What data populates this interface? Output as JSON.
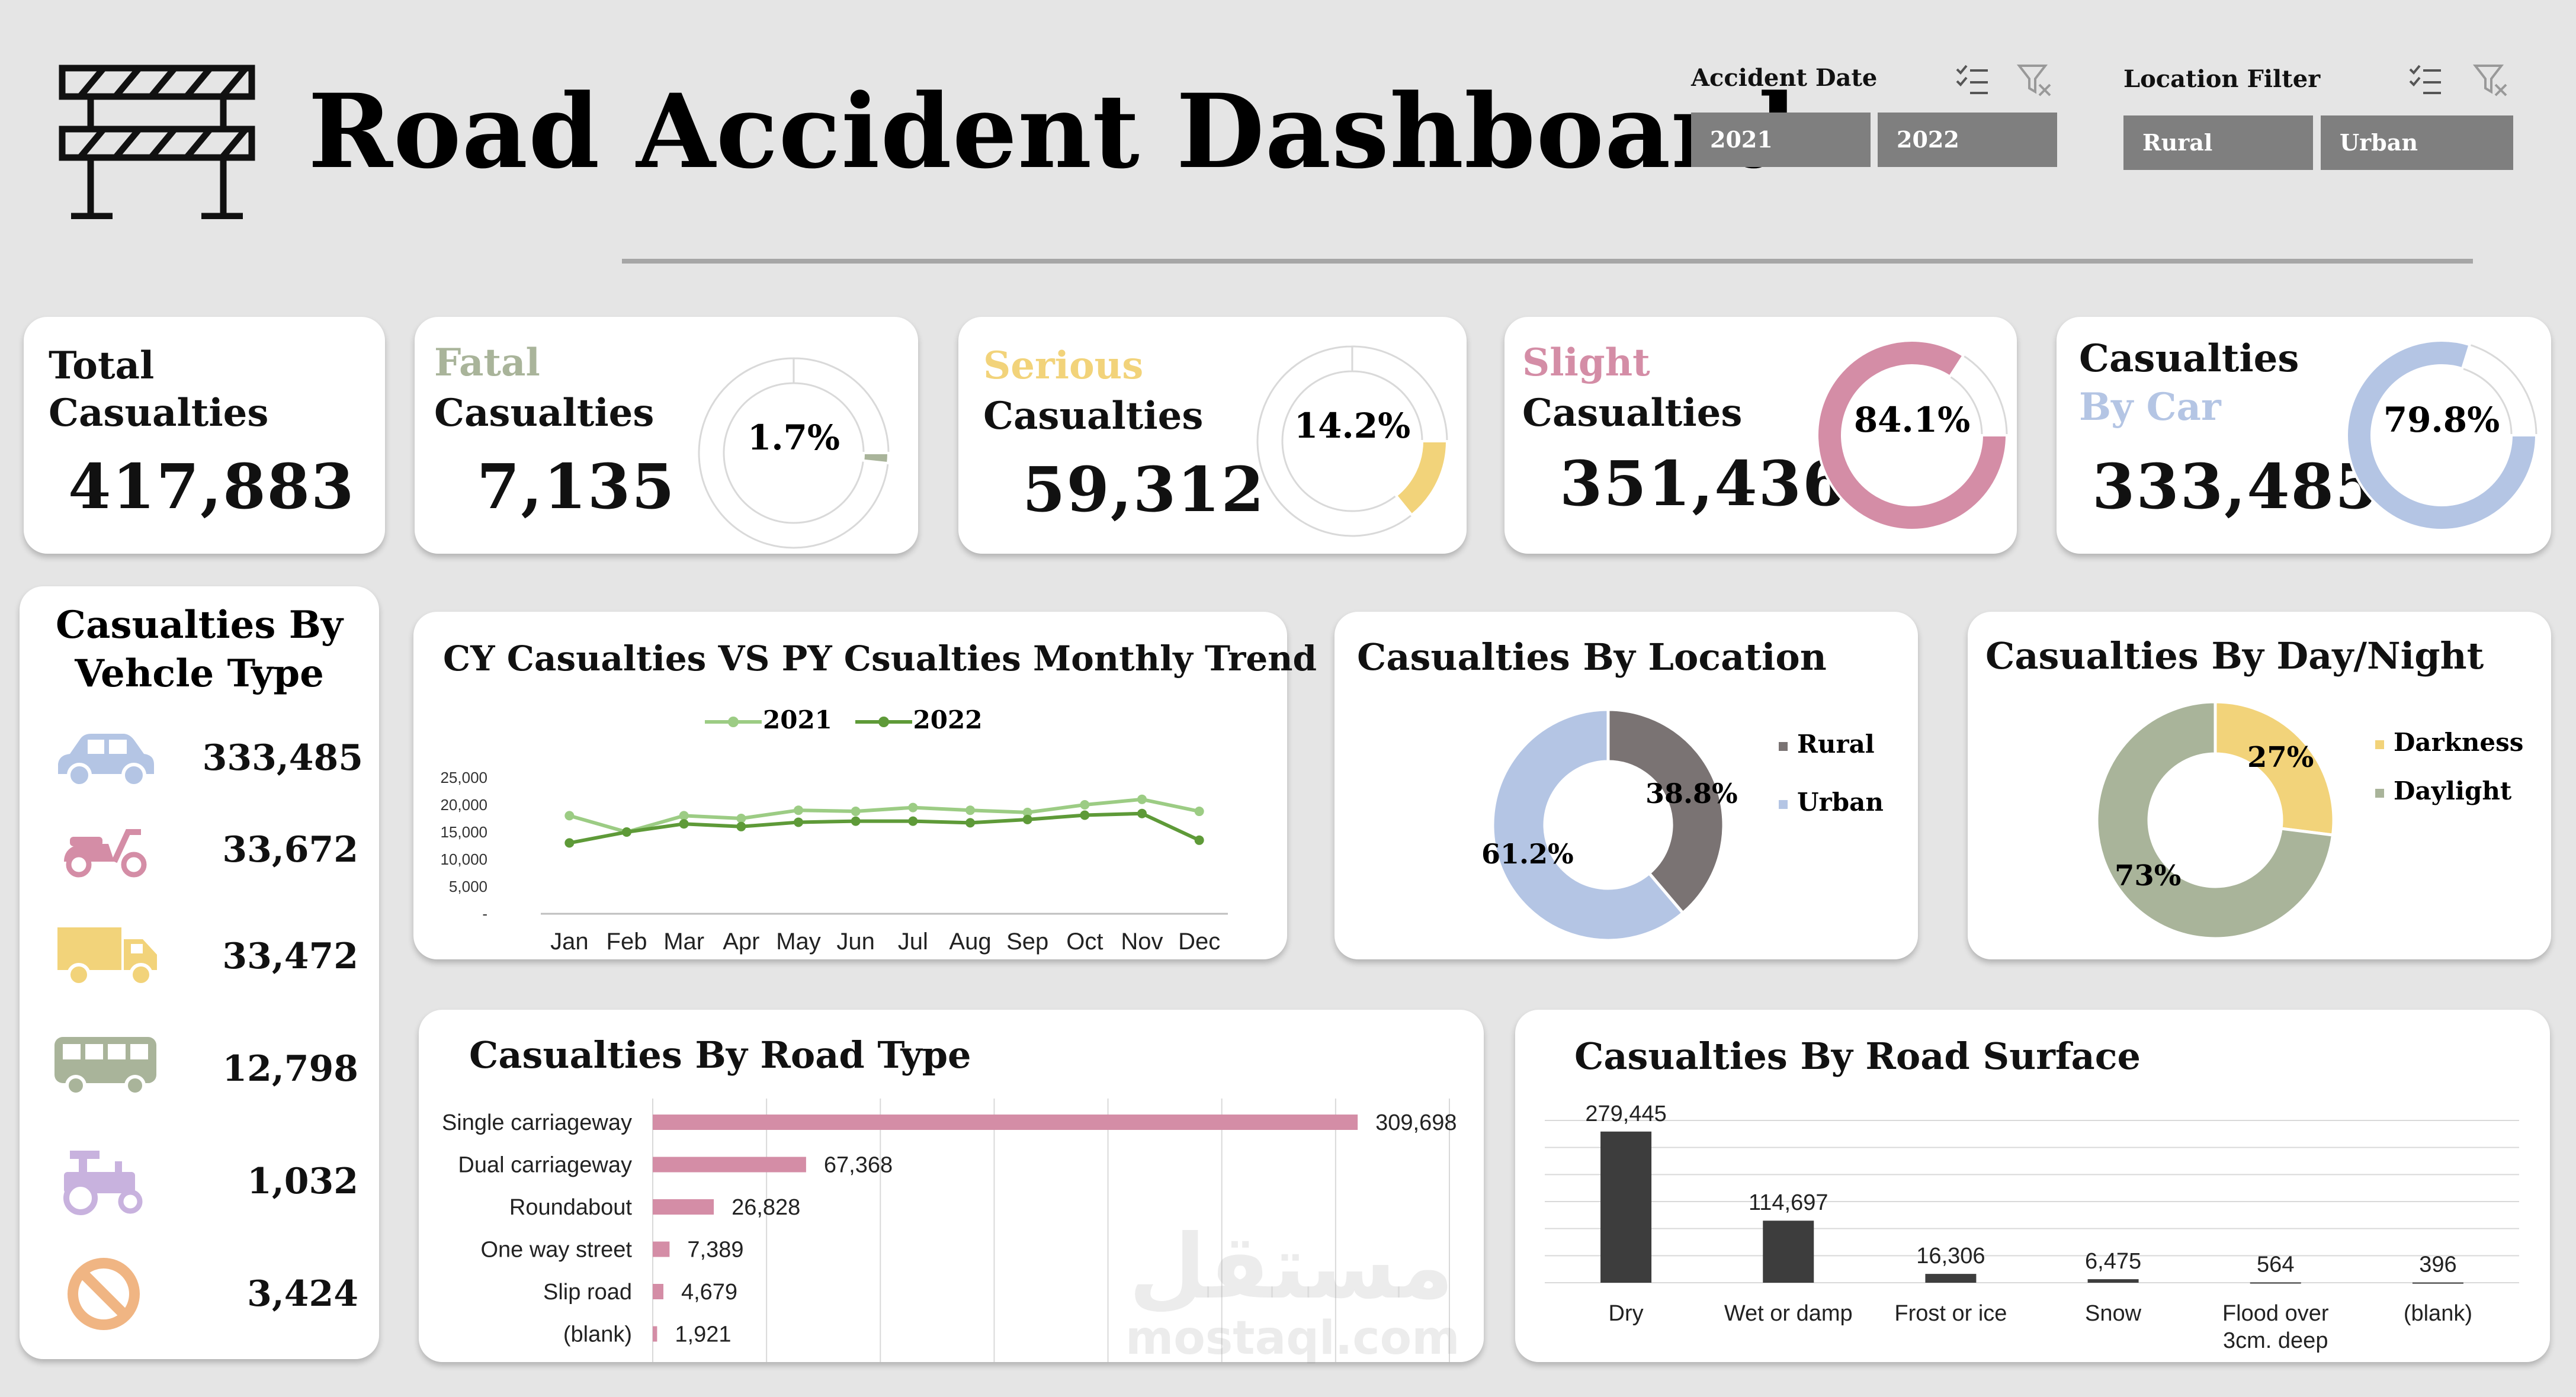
{
  "header": {
    "title": "Road Accident Dashboard"
  },
  "filters": {
    "date": {
      "title": "Accident Date",
      "options": [
        "2021",
        "2022"
      ]
    },
    "location": {
      "title": "Location Filter",
      "options": [
        "Rural",
        "Urban"
      ]
    }
  },
  "kpis": {
    "total": {
      "line1": "Total",
      "line2": "Casualties",
      "value": "417,883"
    },
    "fatal": {
      "line1": "Fatal",
      "line2": "Casualties",
      "value": "7,135",
      "pct_label": "1.7%",
      "pct": 1.7,
      "color": "#a9b49a"
    },
    "serious": {
      "line1": "Serious",
      "line2": "Casualties",
      "value": "59,312",
      "pct_label": "14.2%",
      "pct": 14.2,
      "color": "#f2d37a"
    },
    "slight": {
      "line1": "Slight",
      "line2": "Casualties",
      "value": "351,436",
      "pct_label": "84.1%",
      "pct": 84.1,
      "color": "#d48da6"
    },
    "car": {
      "line1": "Casualties",
      "line2": "By Car",
      "value": "333,485",
      "pct_label": "79.8%",
      "pct": 79.8,
      "color": "#b4c5e4"
    }
  },
  "vehicle": {
    "title_line1": "Casualties By",
    "title_line2": "Vehcle Type",
    "items": [
      {
        "icon": "car-icon",
        "value": "333,485",
        "color": "#b4c5e4"
      },
      {
        "icon": "scooter-icon",
        "value": "33,672",
        "color": "#d48da6"
      },
      {
        "icon": "truck-icon",
        "value": "33,472",
        "color": "#f2d37a"
      },
      {
        "icon": "bus-icon",
        "value": "12,798",
        "color": "#a9b49a"
      },
      {
        "icon": "tractor-icon",
        "value": "1,032",
        "color": "#c8b2de"
      },
      {
        "icon": "no-entry-icon",
        "value": "3,424",
        "color": "#f0b583"
      }
    ]
  },
  "trend": {
    "title": "CY Casualties VS PY Csualties Monthly Trend"
  },
  "location": {
    "title": "Casualties By Location"
  },
  "daynight": {
    "title": "Casualties By Day/Night"
  },
  "roadtype": {
    "title": "Casualties By Road Type"
  },
  "surface": {
    "title": "Casualties By Road Surface"
  },
  "watermark": {
    "line1": "مستقل",
    "line2": "mostaql.com"
  },
  "chart_data": [
    {
      "id": "monthly-trend",
      "type": "line",
      "x": [
        "Jan",
        "Feb",
        "Mar",
        "Apr",
        "May",
        "Jun",
        "Jul",
        "Aug",
        "Sep",
        "Oct",
        "Nov",
        "Dec"
      ],
      "series": [
        {
          "name": "2021",
          "color": "#9ccc84",
          "values": [
            18000,
            15000,
            18000,
            17500,
            19000,
            18800,
            19500,
            19000,
            18600,
            20000,
            21000,
            18800
          ]
        },
        {
          "name": "2022",
          "color": "#5e9a38",
          "values": [
            13000,
            15000,
            16500,
            16000,
            16800,
            17000,
            17000,
            16700,
            17300,
            18100,
            18400,
            13500
          ]
        }
      ],
      "y_ticks": [
        "25,000",
        "20,000",
        "15,000",
        "10,000",
        "5,000",
        "-"
      ],
      "ylim": [
        0,
        25000
      ],
      "legend": "top"
    },
    {
      "id": "by-location",
      "type": "pie",
      "labels": [
        "Rural",
        "Urban"
      ],
      "values": [
        38.8,
        61.2
      ],
      "value_labels": [
        "38.8%",
        "61.2%"
      ],
      "colors": [
        "#7a7373",
        "#b4c5e4"
      ],
      "legend": "right"
    },
    {
      "id": "by-day-night",
      "type": "pie",
      "labels": [
        "Darkness",
        "Daylight"
      ],
      "values": [
        27,
        73
      ],
      "value_labels": [
        "27%",
        "73%"
      ],
      "colors": [
        "#f2d37a",
        "#a9b49a"
      ],
      "legend": "right"
    },
    {
      "id": "by-road-type",
      "type": "bar",
      "orientation": "horizontal",
      "categories": [
        "Single carriageway",
        "Dual carriageway",
        "Roundabout",
        "One way street",
        "Slip road",
        "(blank)"
      ],
      "values": [
        309698,
        67368,
        26828,
        7389,
        4679,
        1921
      ],
      "value_labels": [
        "309,698",
        "67,368",
        "26,828",
        "7,389",
        "4,679",
        "1,921"
      ],
      "color": "#d48da6",
      "grid": true
    },
    {
      "id": "by-road-surface",
      "type": "bar",
      "categories": [
        "Dry",
        "Wet or damp",
        "Frost or ice",
        "Snow",
        "Flood over 3cm. deep",
        "(blank)"
      ],
      "values": [
        279445,
        114697,
        16306,
        6475,
        564,
        396
      ],
      "value_labels": [
        "279,445",
        "114,697",
        "16,306",
        "6,475",
        "564",
        "396"
      ],
      "color": "#3d3d3d",
      "grid": true
    }
  ]
}
